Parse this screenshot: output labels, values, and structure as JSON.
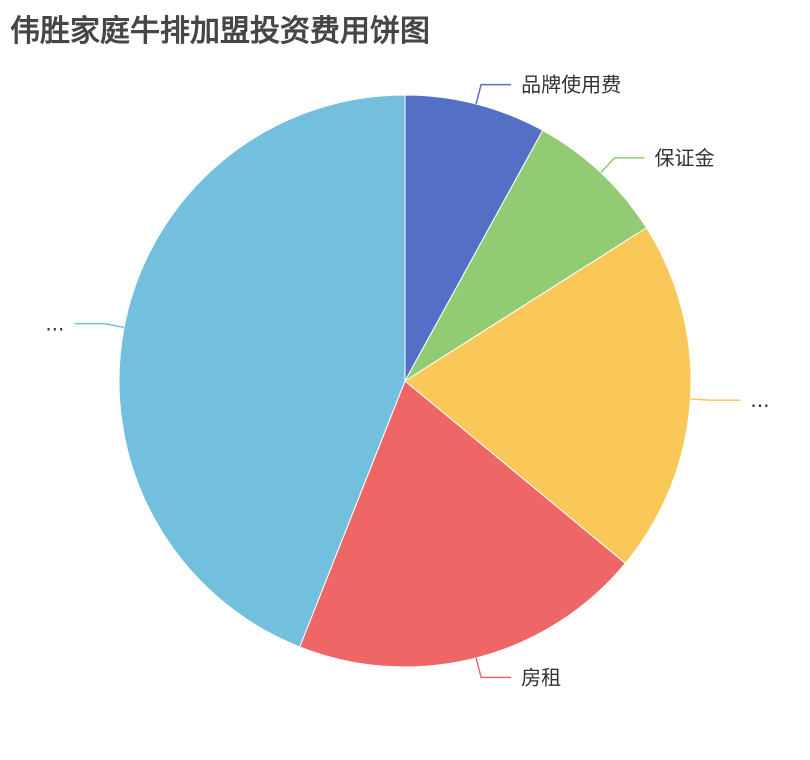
{
  "chart_data": {
    "type": "pie",
    "title": "伟胜家庭牛排加盟投资费用饼图",
    "slices": [
      {
        "label": "品牌使用费",
        "value": 2,
        "color": "#5470c6"
      },
      {
        "label": "保证金",
        "value": 2,
        "color": "#91cc75"
      },
      {
        "label": "...",
        "value": 5,
        "color": "#fac858"
      },
      {
        "label": "房租",
        "value": 5,
        "color": "#ee6666"
      },
      {
        "label": "...",
        "value": 11,
        "color": "#73c0de"
      }
    ],
    "start_angle": "top, clockwise",
    "legend": "none"
  }
}
